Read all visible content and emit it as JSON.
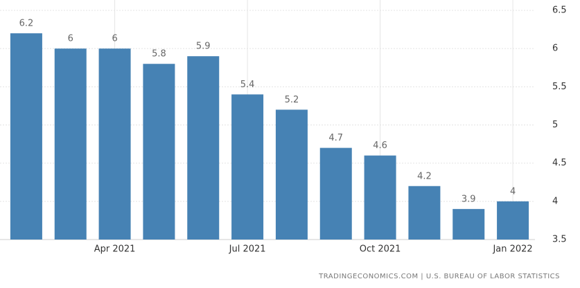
{
  "chart_data": {
    "type": "bar",
    "categories": [
      null,
      null,
      "Apr 2021",
      null,
      null,
      "Jul 2021",
      null,
      null,
      "Oct 2021",
      null,
      null,
      "Jan 2022"
    ],
    "values": [
      6.2,
      6,
      6,
      5.8,
      5.9,
      5.4,
      5.2,
      4.7,
      4.6,
      4.2,
      3.9,
      4
    ],
    "color": "#4682b4",
    "ylim": [
      3.5,
      6.5
    ],
    "yticks": [
      3.5,
      4,
      4.5,
      5,
      5.5,
      6,
      6.5
    ],
    "grid": true,
    "y_axis_side": "right",
    "source": "TRADINGECONOMICS.COM | U.S. BUREAU OF LABOR STATISTICS"
  }
}
